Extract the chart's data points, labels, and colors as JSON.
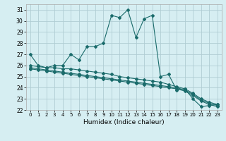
{
  "xlabel": "Humidex (Indice chaleur)",
  "bg_color": "#d6eef2",
  "grid_color": "#b0cdd4",
  "line_color": "#1a6b6b",
  "xlim": [
    -0.5,
    23.5
  ],
  "ylim": [
    22,
    31.5
  ],
  "xticks": [
    0,
    1,
    2,
    3,
    4,
    5,
    6,
    7,
    8,
    9,
    10,
    11,
    12,
    13,
    14,
    15,
    16,
    17,
    18,
    19,
    20,
    21,
    22,
    23
  ],
  "yticks": [
    22,
    23,
    24,
    25,
    26,
    27,
    28,
    29,
    30,
    31
  ],
  "series1_x": [
    0,
    1,
    2,
    3,
    4,
    5,
    6,
    7,
    8,
    9,
    10,
    11,
    12,
    13,
    14,
    15,
    16,
    17,
    18,
    19,
    20,
    21,
    22,
    23
  ],
  "series1_y": [
    27.0,
    26.0,
    25.8,
    26.0,
    26.0,
    27.0,
    26.5,
    27.7,
    27.7,
    28.0,
    30.5,
    30.3,
    31.0,
    28.5,
    30.2,
    30.5,
    25.0,
    25.2,
    23.8,
    23.9,
    23.0,
    22.3,
    22.4,
    22.5
  ],
  "series2_x": [
    0,
    1,
    2,
    3,
    4,
    5,
    6,
    7,
    8,
    9,
    10,
    11,
    12,
    13,
    14,
    15,
    16,
    17,
    18,
    19,
    20,
    21,
    22,
    23
  ],
  "series2_y": [
    26.0,
    25.9,
    25.8,
    25.8,
    25.7,
    25.7,
    25.6,
    25.5,
    25.4,
    25.3,
    25.2,
    25.0,
    24.9,
    24.8,
    24.7,
    24.6,
    24.5,
    24.3,
    24.1,
    23.9,
    23.5,
    23.0,
    22.7,
    22.5
  ],
  "series3_x": [
    0,
    1,
    2,
    3,
    4,
    5,
    6,
    7,
    8,
    9,
    10,
    11,
    12,
    13,
    14,
    15,
    16,
    17,
    18,
    19,
    20,
    21,
    22,
    23
  ],
  "series3_y": [
    25.8,
    25.7,
    25.6,
    25.5,
    25.4,
    25.3,
    25.2,
    25.1,
    25.0,
    24.9,
    24.8,
    24.7,
    24.6,
    24.5,
    24.4,
    24.3,
    24.2,
    24.1,
    24.0,
    23.8,
    23.4,
    22.9,
    22.6,
    22.4
  ],
  "series4_x": [
    0,
    1,
    2,
    3,
    4,
    5,
    6,
    7,
    8,
    9,
    10,
    11,
    12,
    13,
    14,
    15,
    16,
    17,
    18,
    19,
    20,
    21,
    22,
    23
  ],
  "series4_y": [
    25.7,
    25.6,
    25.5,
    25.4,
    25.3,
    25.2,
    25.1,
    25.0,
    24.9,
    24.8,
    24.7,
    24.6,
    24.5,
    24.4,
    24.3,
    24.2,
    24.1,
    24.0,
    23.9,
    23.7,
    23.3,
    22.8,
    22.5,
    22.3
  ]
}
